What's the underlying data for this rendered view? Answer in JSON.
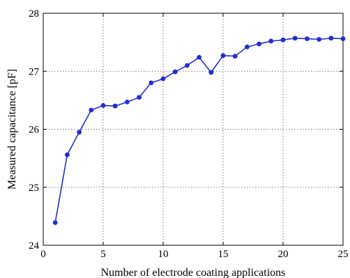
{
  "chart_data": {
    "type": "line",
    "title": "",
    "xlabel": "Number of electrode coating applications",
    "ylabel": "Measured capacitance [pF]",
    "xlim": [
      0,
      25
    ],
    "ylim": [
      24,
      28
    ],
    "xticks": [
      0,
      5,
      10,
      15,
      20,
      25
    ],
    "yticks": [
      24,
      25,
      26,
      27,
      28
    ],
    "grid": true,
    "legend": "none",
    "series": [
      {
        "color": "#1f2fcf",
        "marker": "circle",
        "x": [
          1,
          2,
          3,
          4,
          5,
          6,
          7,
          8,
          9,
          10,
          11,
          12,
          13,
          14,
          15,
          16,
          17,
          18,
          19,
          20,
          21,
          22,
          23,
          24,
          25
        ],
        "y": [
          24.39,
          25.56,
          25.95,
          26.33,
          26.41,
          26.4,
          26.47,
          26.55,
          26.8,
          26.87,
          26.99,
          27.1,
          27.24,
          26.98,
          27.27,
          27.26,
          27.42,
          27.47,
          27.52,
          27.54,
          27.57,
          27.56,
          27.55,
          27.57,
          27.56
        ]
      }
    ]
  }
}
